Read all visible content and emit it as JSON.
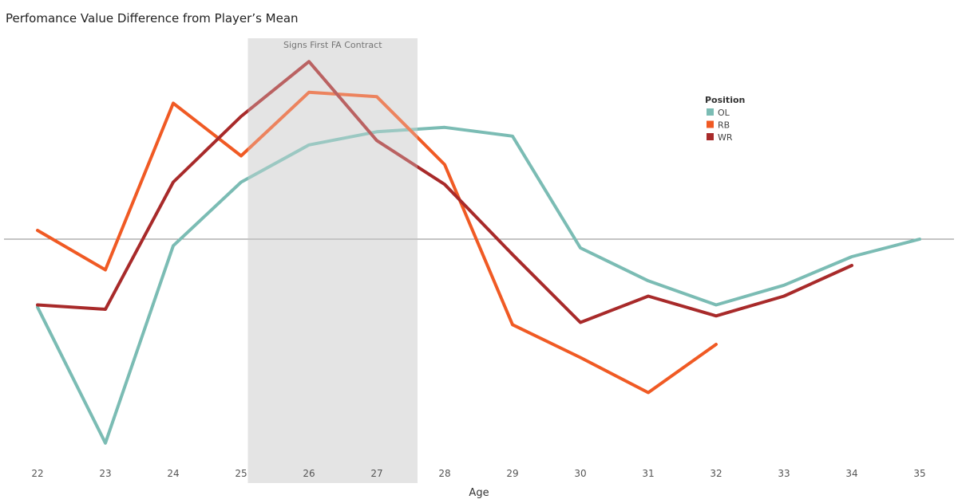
{
  "chart_data": {
    "type": "line",
    "title": "Perfomance Value Difference from Player’s Mean",
    "xlabel": "Age",
    "ylabel": "",
    "x": [
      22,
      23,
      24,
      25,
      26,
      27,
      28,
      29,
      30,
      31,
      32,
      33,
      34,
      35
    ],
    "ylim": [
      -1.0,
      0.8
    ],
    "zero_line": true,
    "grid": false,
    "shaded_region": {
      "x_start": 25.1,
      "x_end": 27.6,
      "label": "Signs First FA Contract"
    },
    "legend": {
      "title": "Position",
      "position": "top-right"
    },
    "series": [
      {
        "name": "OL",
        "color": "#7bbcb4",
        "values": [
          -0.31,
          -0.93,
          -0.03,
          0.26,
          0.43,
          0.49,
          0.51,
          0.47,
          -0.04,
          -0.19,
          -0.3,
          -0.21,
          -0.08,
          0.0
        ]
      },
      {
        "name": "RB",
        "color": "#f05a24",
        "values": [
          0.04,
          -0.14,
          0.62,
          0.38,
          0.67,
          0.65,
          0.34,
          -0.39,
          -0.54,
          -0.7,
          -0.48,
          null,
          null,
          null
        ]
      },
      {
        "name": "WR",
        "color": "#a82a2a",
        "values": [
          -0.3,
          -0.32,
          0.26,
          0.56,
          0.81,
          0.45,
          0.25,
          -0.07,
          -0.38,
          -0.26,
          -0.35,
          -0.26,
          -0.12,
          null
        ]
      }
    ]
  }
}
